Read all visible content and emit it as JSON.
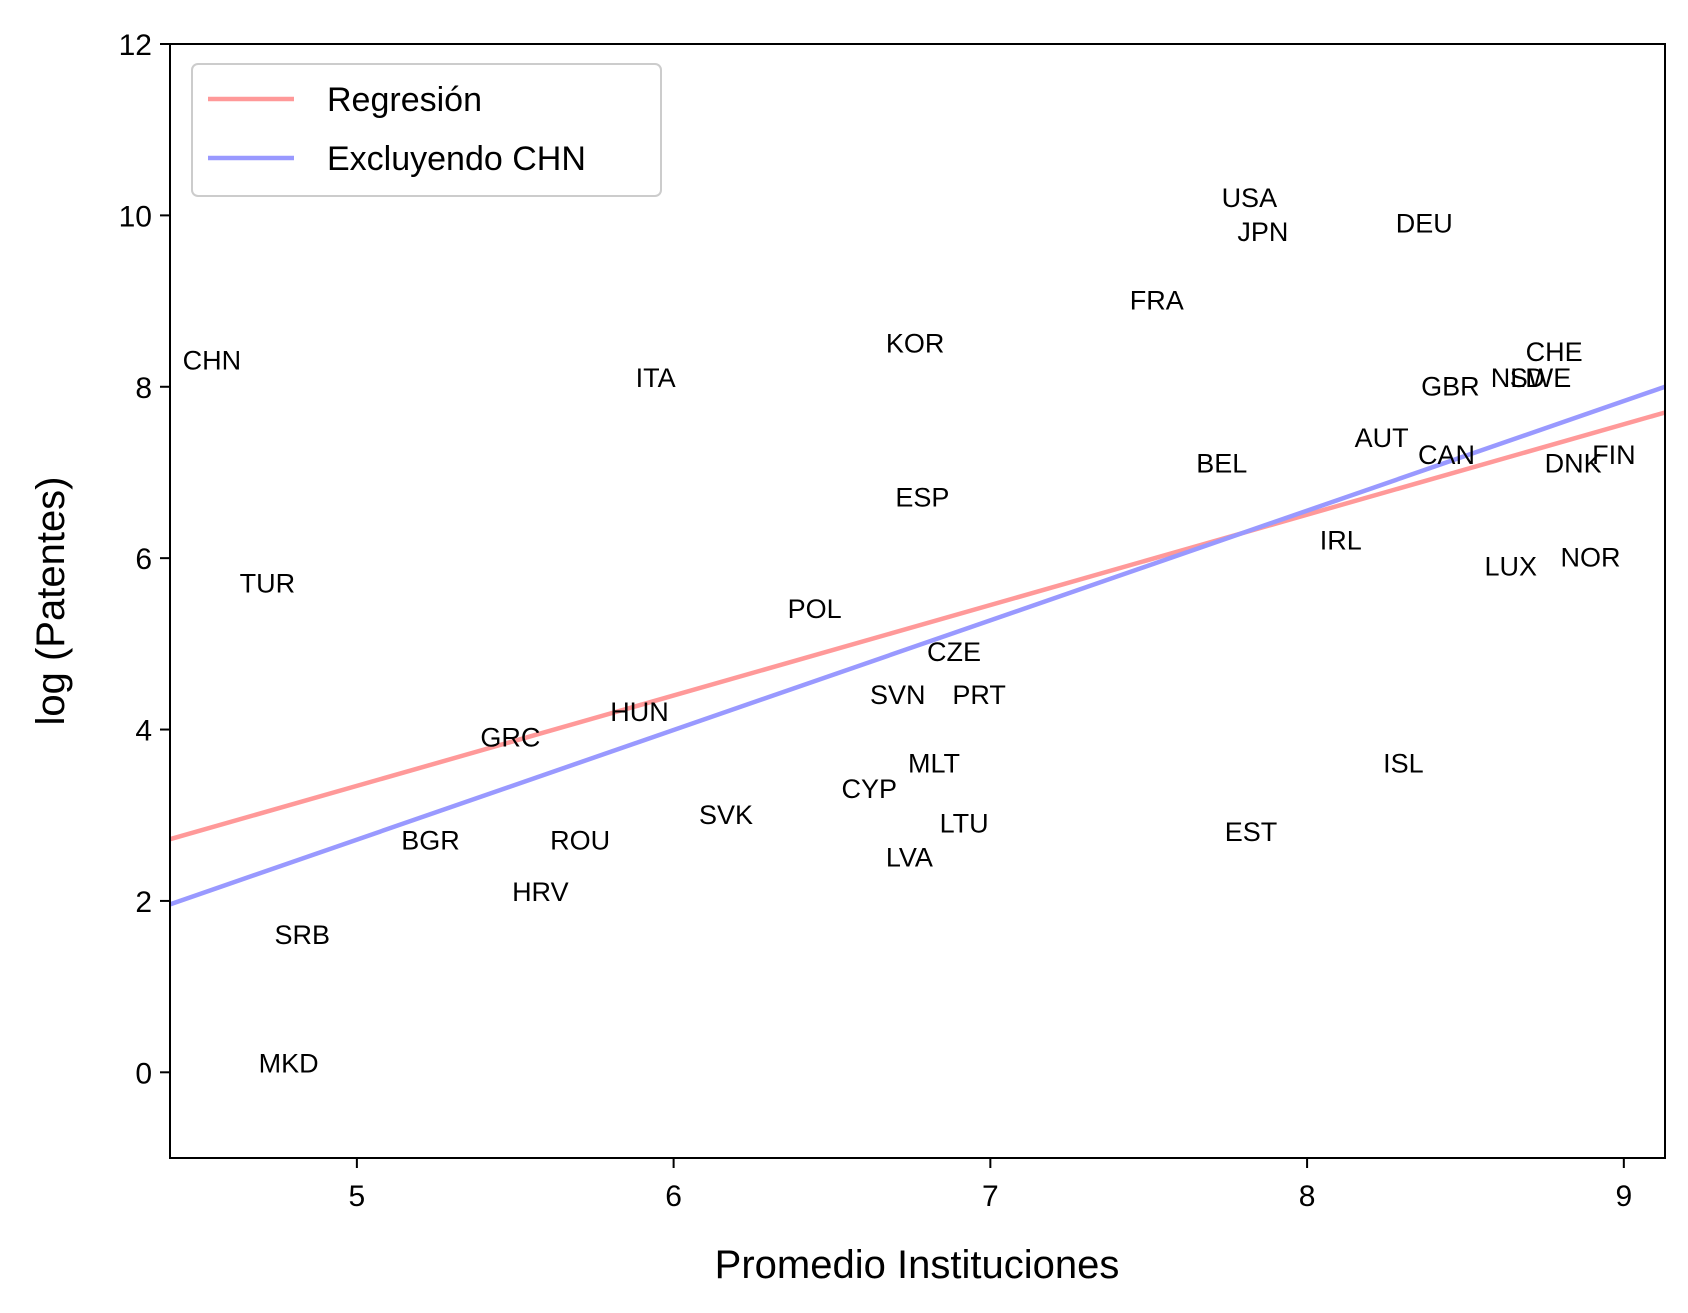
{
  "chart_data": {
    "type": "scatter",
    "title": "",
    "xlabel": "Promedio Instituciones",
    "ylabel": "log (Patentes)",
    "xlim": [
      4.41,
      9.13
    ],
    "ylim": [
      -1,
      12
    ],
    "xticks": [
      5,
      6,
      7,
      8,
      9
    ],
    "yticks": [
      0,
      2,
      4,
      6,
      8,
      10,
      12
    ],
    "grid": false,
    "legend_position": "top-left",
    "points": [
      {
        "label": "CHN",
        "x": 4.45,
        "y": 8.2
      },
      {
        "label": "TUR",
        "x": 4.63,
        "y": 5.6
      },
      {
        "label": "SRB",
        "x": 4.74,
        "y": 1.5
      },
      {
        "label": "MKD",
        "x": 4.69,
        "y": 0.0
      },
      {
        "label": "BGR",
        "x": 5.14,
        "y": 2.6
      },
      {
        "label": "GRC",
        "x": 5.39,
        "y": 3.8
      },
      {
        "label": "HRV",
        "x": 5.49,
        "y": 2.0
      },
      {
        "label": "ROU",
        "x": 5.61,
        "y": 2.6
      },
      {
        "label": "HUN",
        "x": 5.8,
        "y": 4.1
      },
      {
        "label": "ITA",
        "x": 5.88,
        "y": 8.0
      },
      {
        "label": "SVK",
        "x": 6.08,
        "y": 2.9
      },
      {
        "label": "POL",
        "x": 6.36,
        "y": 5.3
      },
      {
        "label": "CYP",
        "x": 6.53,
        "y": 3.2
      },
      {
        "label": "SVN",
        "x": 6.62,
        "y": 4.3
      },
      {
        "label": "KOR",
        "x": 6.67,
        "y": 8.4
      },
      {
        "label": "LVA",
        "x": 6.67,
        "y": 2.4
      },
      {
        "label": "ESP",
        "x": 6.7,
        "y": 6.6
      },
      {
        "label": "MLT",
        "x": 6.74,
        "y": 3.5
      },
      {
        "label": "CZE",
        "x": 6.8,
        "y": 4.8
      },
      {
        "label": "LTU",
        "x": 6.84,
        "y": 2.8
      },
      {
        "label": "PRT",
        "x": 6.88,
        "y": 4.3
      },
      {
        "label": "FRA",
        "x": 7.44,
        "y": 8.9
      },
      {
        "label": "BEL",
        "x": 7.65,
        "y": 7.0
      },
      {
        "label": "USA",
        "x": 7.73,
        "y": 10.1
      },
      {
        "label": "EST",
        "x": 7.74,
        "y": 2.7
      },
      {
        "label": "JPN",
        "x": 7.78,
        "y": 9.7
      },
      {
        "label": "IRL",
        "x": 8.04,
        "y": 6.1
      },
      {
        "label": "AUT",
        "x": 8.15,
        "y": 7.3
      },
      {
        "label": "ISL",
        "x": 8.24,
        "y": 3.5
      },
      {
        "label": "DEU",
        "x": 8.28,
        "y": 9.8
      },
      {
        "label": "CAN",
        "x": 8.35,
        "y": 7.1
      },
      {
        "label": "GBR",
        "x": 8.36,
        "y": 7.9
      },
      {
        "label": "LUX",
        "x": 8.56,
        "y": 5.8
      },
      {
        "label": "NLD",
        "x": 8.58,
        "y": 8.0
      },
      {
        "label": "SWE",
        "x": 8.64,
        "y": 8.0
      },
      {
        "label": "CHE",
        "x": 8.69,
        "y": 8.3
      },
      {
        "label": "DNK",
        "x": 8.75,
        "y": 7.0
      },
      {
        "label": "NOR",
        "x": 8.8,
        "y": 5.9
      },
      {
        "label": "FIN",
        "x": 8.9,
        "y": 7.1
      }
    ],
    "series": [
      {
        "name": "Regresión",
        "color": "#ff9999",
        "x": [
          4.41,
          9.13
        ],
        "y": [
          2.72,
          7.7
        ]
      },
      {
        "name": "Excluyendo CHN",
        "color": "#9999ff",
        "x": [
          4.41,
          9.13
        ],
        "y": [
          1.96,
          8.0
        ]
      }
    ]
  }
}
